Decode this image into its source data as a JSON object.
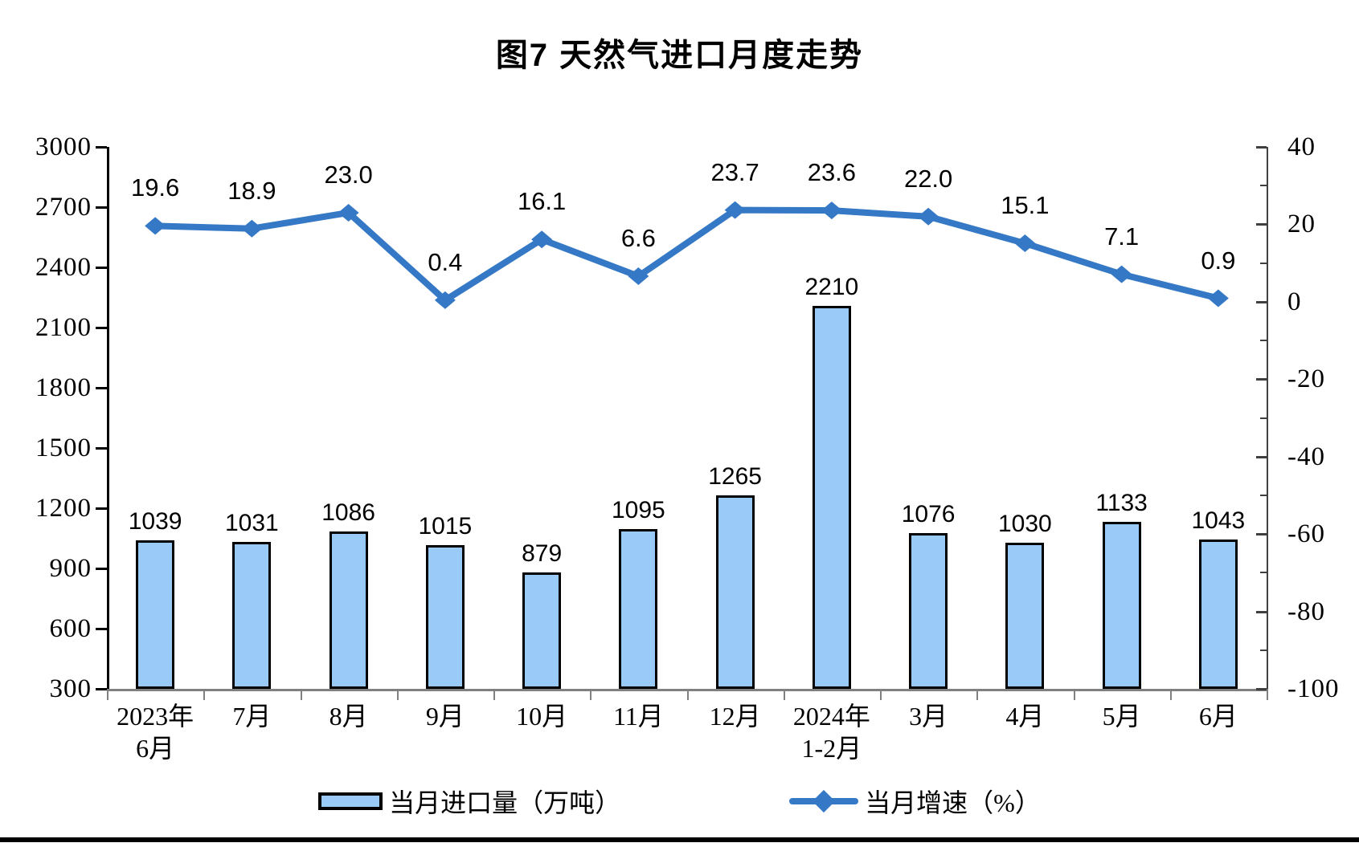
{
  "title": "图7 天然气进口月度走势",
  "chart_data": {
    "type": "bar",
    "subtype": "bar+line-dual-axis",
    "title": "图7 天然气进口月度走势",
    "categories": [
      "2023年\n6月",
      "7月",
      "8月",
      "9月",
      "10月",
      "11月",
      "12月",
      "2024年\n1-2月",
      "3月",
      "4月",
      "5月",
      "6月"
    ],
    "series": [
      {
        "name": "当月进口量（万吨）",
        "type": "bar",
        "axis": "left",
        "values": [
          1039,
          1031,
          1086,
          1015,
          879,
          1095,
          1265,
          2210,
          1076,
          1030,
          1133,
          1043
        ],
        "labels": [
          "1039",
          "1031",
          "1086",
          "1015",
          "879",
          "1095",
          "1265",
          "2210",
          "1076",
          "1030",
          "1133",
          "1043"
        ],
        "fill": "#9ACAF8",
        "stroke": "#000000"
      },
      {
        "name": "当月增速（%）",
        "type": "line",
        "axis": "right",
        "values": [
          19.6,
          18.9,
          23.0,
          0.4,
          16.1,
          6.6,
          23.7,
          23.6,
          22.0,
          15.1,
          7.1,
          0.9
        ],
        "labels": [
          "19.6",
          "18.9",
          "23.0",
          "0.4",
          "16.1",
          "6.6",
          "23.7",
          "23.6",
          "22.0",
          "15.1",
          "7.1",
          "0.9"
        ],
        "color": "#3478C6",
        "marker": "diamond"
      }
    ],
    "left_axis": {
      "min": 300,
      "max": 3000,
      "step": 300,
      "tick_labels": [
        "3000",
        "2700",
        "2400",
        "2100",
        "1800",
        "1500",
        "1200",
        "900",
        "600",
        "300"
      ]
    },
    "right_axis": {
      "min": -100,
      "max": 40,
      "step": 20,
      "minor_step": 10,
      "tick_labels": [
        "40",
        "20",
        "0",
        "-20",
        "-40",
        "-60",
        "-80",
        "-100"
      ]
    },
    "legend": {
      "position": "bottom",
      "items": [
        "当月进口量（万吨）",
        "当月增速（%）"
      ]
    },
    "grid": false,
    "colors": {
      "bar_fill": "#9ACAF8",
      "bar_stroke": "#000000",
      "line": "#3478C6",
      "axis_left": "#000000",
      "axis_right": "#404040",
      "baseline": "#808080",
      "text": "#000000"
    }
  }
}
